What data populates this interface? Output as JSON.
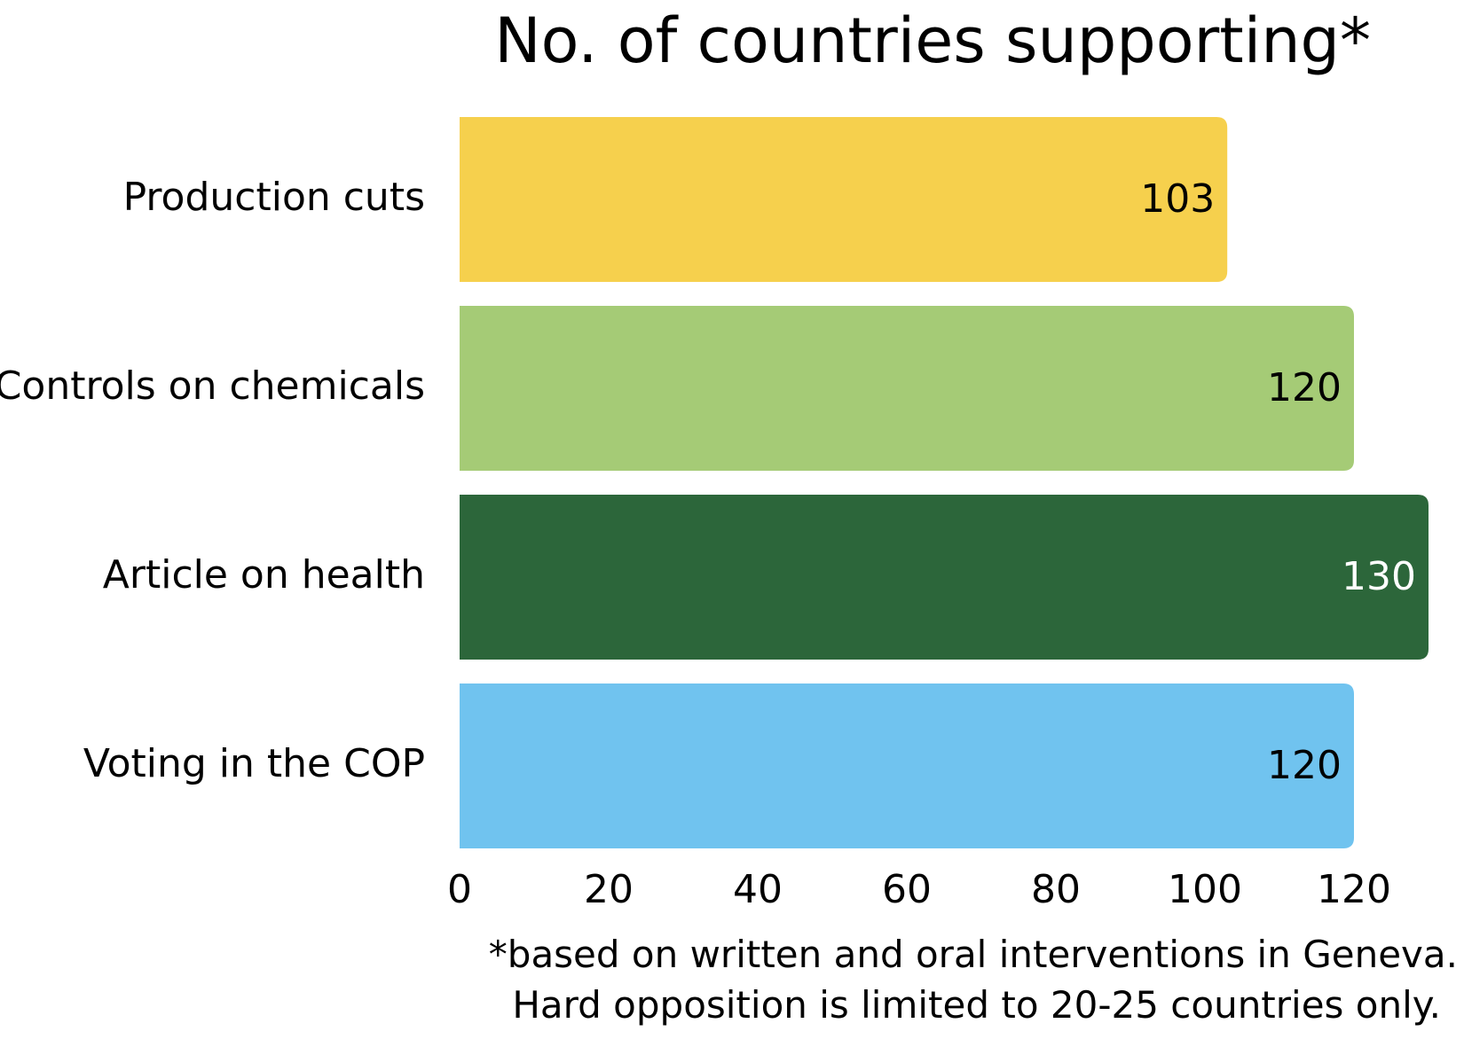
{
  "chart_data": {
    "type": "bar",
    "orientation": "horizontal",
    "title": "No. of countries supporting*",
    "categories": [
      "Production cuts",
      "Controls on chemicals",
      "Article on health",
      "Voting in the COP"
    ],
    "values": [
      103,
      120,
      130,
      120
    ],
    "colors": [
      "#F6D04D",
      "#A5CB76",
      "#2C663A",
      "#70C3EF"
    ],
    "value_label_colors": [
      "#000000",
      "#000000",
      "#ffffff",
      "#000000"
    ],
    "xticks": [
      0,
      20,
      40,
      60,
      80,
      100,
      120
    ],
    "xlim": [
      0,
      130
    ],
    "xlabel": "",
    "ylabel": "",
    "grid": false,
    "footnote": [
      "*based on written and oral interventions in Geneva.",
      "Hard opposition is limited to 20-25 countries only."
    ]
  }
}
